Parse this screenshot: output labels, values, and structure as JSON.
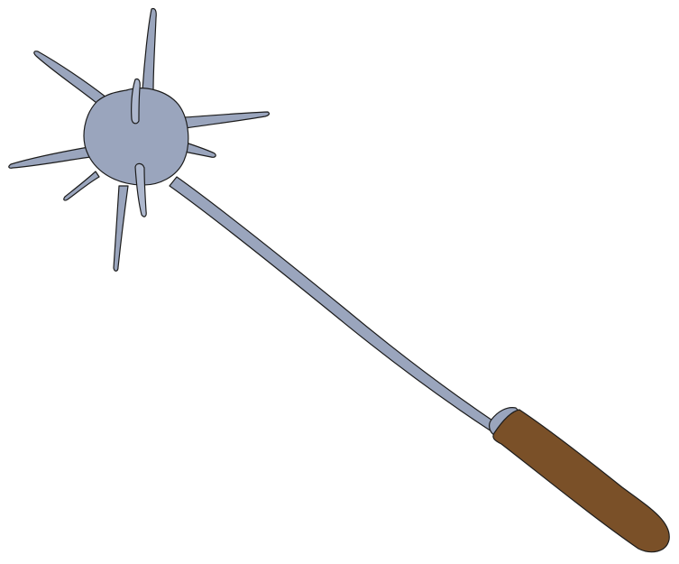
{
  "illustration": {
    "subject": "spiked-mace-icon",
    "colors": {
      "background": "#ffffff",
      "metal": "#9aa5bd",
      "metal_highlight": "#aeb8ce",
      "handle": "#7a5028",
      "outline": "#1c1c1c"
    }
  }
}
